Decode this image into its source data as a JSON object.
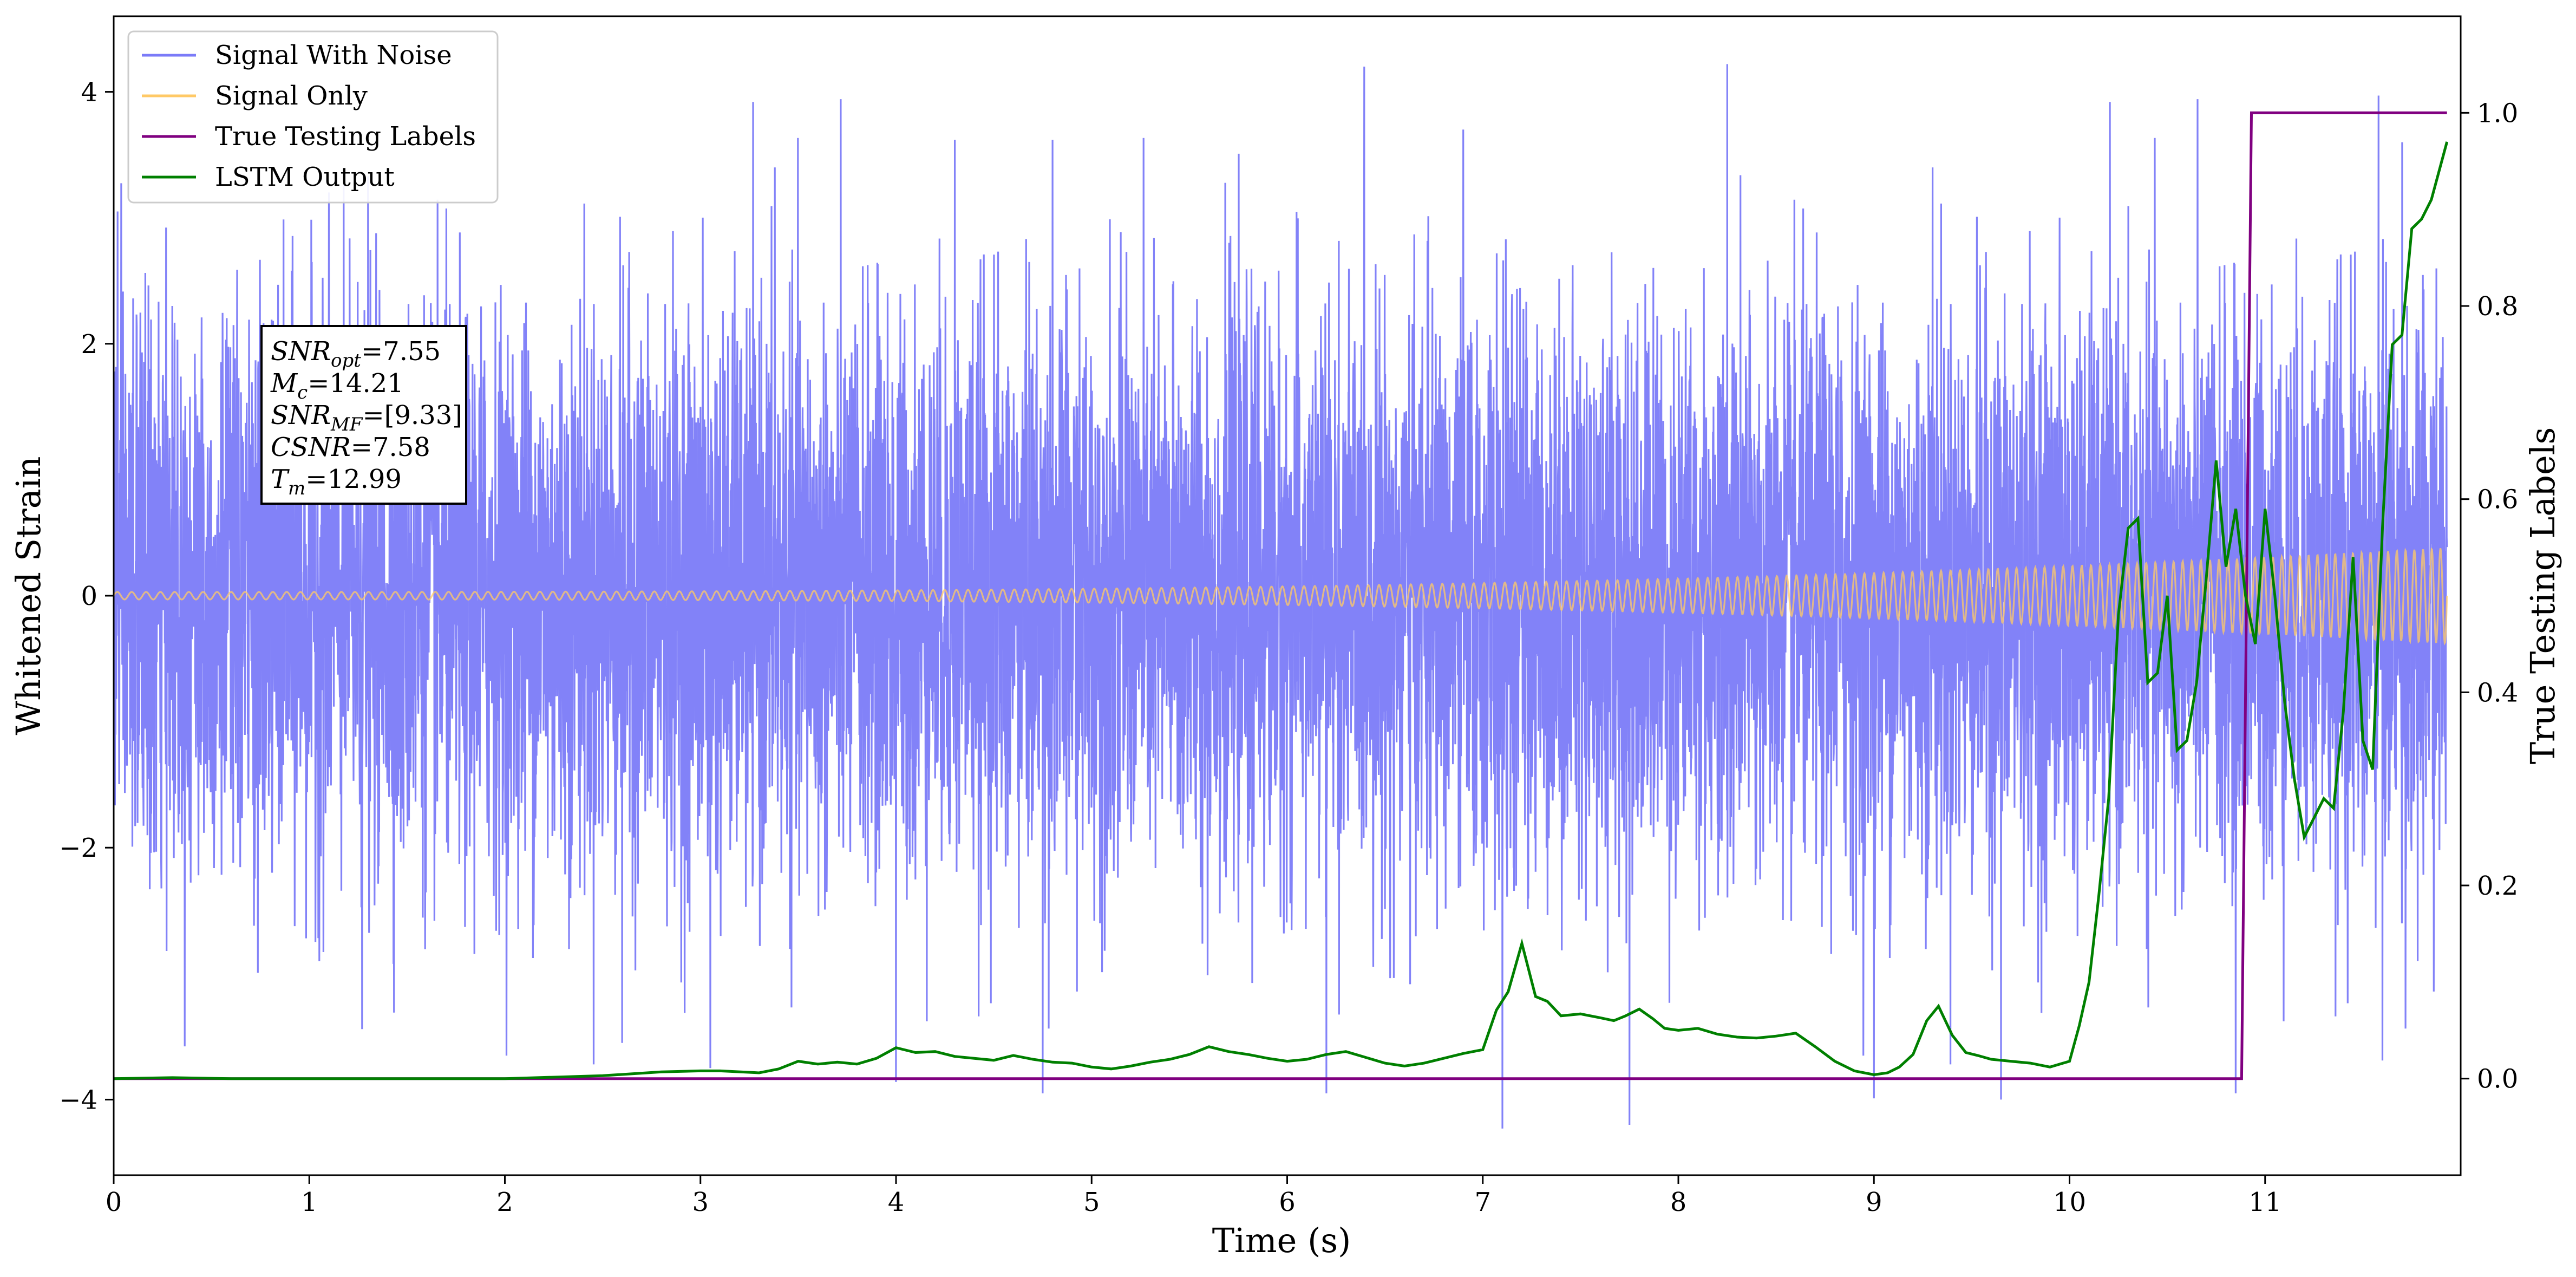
{
  "chart_data": {
    "type": "line",
    "xlabel": "Time (s)",
    "ylabel_left": "Whitened Strain",
    "ylabel_right": "True Testing Labels",
    "xlim": [
      0,
      12
    ],
    "ylim_left": [
      -4.6,
      4.6
    ],
    "ylim_right": [
      -0.1,
      1.1
    ],
    "x_ticks": [
      0,
      1,
      2,
      3,
      4,
      5,
      6,
      7,
      8,
      9,
      10,
      11
    ],
    "y_ticks_left": [
      -4,
      -2,
      0,
      2,
      4
    ],
    "y_ticks_left_labels": [
      "−4",
      "−2",
      "0",
      "2",
      "4"
    ],
    "y_ticks_right": [
      0.0,
      0.2,
      0.4,
      0.6,
      0.8,
      1.0
    ],
    "y_ticks_right_labels": [
      "0.0",
      "0.2",
      "0.4",
      "0.6",
      "0.8",
      "1.0"
    ],
    "legend_position": "top-left",
    "grid": false,
    "series": [
      {
        "name": "Signal With Noise",
        "axis": "left",
        "color": "#7b7bf8",
        "kind": "noise",
        "approx_std": 1.1,
        "approx_range": [
          -4.2,
          4.2
        ],
        "notable_peaks": [
          [
            0.02,
            3.05
          ],
          [
            0.1,
            2.36
          ],
          [
            0.3,
            2.3
          ],
          [
            1.3,
            3.33
          ],
          [
            2.6,
            3.7
          ],
          [
            3.38,
            3.4
          ],
          [
            4.3,
            3.62
          ],
          [
            4.8,
            3.62
          ],
          [
            6.9,
            3.7
          ],
          [
            8.25,
            4.22
          ],
          [
            9.3,
            3.4
          ],
          [
            11.58,
            3.97
          ],
          [
            11.7,
            3.6
          ]
        ],
        "notable_troughs": [
          [
            1.27,
            -3.44
          ],
          [
            2.6,
            -3.55
          ],
          [
            3.05,
            -3.75
          ],
          [
            4.0,
            -3.86
          ],
          [
            4.75,
            -3.95
          ],
          [
            6.2,
            -3.95
          ],
          [
            7.1,
            -4.23
          ],
          [
            7.75,
            -4.2
          ],
          [
            9.0,
            -3.99
          ],
          [
            9.65,
            -4.0
          ],
          [
            10.85,
            -3.95
          ],
          [
            11.6,
            -3.69
          ],
          [
            11.78,
            -2.9
          ]
        ]
      },
      {
        "name": "Signal Only",
        "axis": "left",
        "color": "#ffc966",
        "kind": "chirp",
        "amplitude_start": 0.03,
        "amplitude_end": 0.38,
        "cycles": 215
      },
      {
        "name": "True Testing Labels",
        "axis": "right",
        "color": "#800080",
        "x": [
          0,
          10.88,
          10.93,
          11.93
        ],
        "y": [
          0,
          0,
          1,
          1
        ]
      },
      {
        "name": "LSTM Output",
        "axis": "right",
        "color": "#008000",
        "x": [
          0,
          0.3,
          0.6,
          1.0,
          1.5,
          2.0,
          2.5,
          2.8,
          3.0,
          3.1,
          3.3,
          3.4,
          3.5,
          3.6,
          3.7,
          3.8,
          3.9,
          4.0,
          4.1,
          4.2,
          4.3,
          4.4,
          4.5,
          4.6,
          4.7,
          4.8,
          4.9,
          5.0,
          5.1,
          5.2,
          5.3,
          5.4,
          5.5,
          5.6,
          5.7,
          5.8,
          5.9,
          6.0,
          6.1,
          6.2,
          6.3,
          6.4,
          6.5,
          6.6,
          6.7,
          6.8,
          6.9,
          7.0,
          7.07,
          7.13,
          7.2,
          7.27,
          7.33,
          7.4,
          7.5,
          7.6,
          7.67,
          7.73,
          7.8,
          7.87,
          7.93,
          8.0,
          8.1,
          8.2,
          8.3,
          8.4,
          8.5,
          8.6,
          8.7,
          8.8,
          8.9,
          9.0,
          9.07,
          9.13,
          9.2,
          9.27,
          9.33,
          9.4,
          9.47,
          9.53,
          9.6,
          9.7,
          9.8,
          9.9,
          10.0,
          10.05,
          10.1,
          10.15,
          10.2,
          10.25,
          10.3,
          10.35,
          10.4,
          10.45,
          10.5,
          10.55,
          10.6,
          10.65,
          10.7,
          10.75,
          10.8,
          10.85,
          10.9,
          10.95,
          11.0,
          11.05,
          11.1,
          11.15,
          11.2,
          11.25,
          11.3,
          11.35,
          11.4,
          11.45,
          11.5,
          11.55,
          11.6,
          11.65,
          11.7,
          11.75,
          11.8,
          11.85,
          11.93
        ],
        "y": [
          0.0,
          0.001,
          0.0,
          0.0,
          0.0,
          0.0,
          0.003,
          0.007,
          0.008,
          0.008,
          0.006,
          0.01,
          0.018,
          0.015,
          0.017,
          0.015,
          0.021,
          0.032,
          0.027,
          0.028,
          0.023,
          0.021,
          0.019,
          0.024,
          0.02,
          0.017,
          0.016,
          0.012,
          0.01,
          0.013,
          0.017,
          0.02,
          0.025,
          0.033,
          0.028,
          0.025,
          0.021,
          0.018,
          0.02,
          0.025,
          0.028,
          0.022,
          0.016,
          0.013,
          0.016,
          0.021,
          0.026,
          0.03,
          0.071,
          0.09,
          0.14,
          0.085,
          0.08,
          0.065,
          0.067,
          0.063,
          0.06,
          0.065,
          0.072,
          0.062,
          0.052,
          0.05,
          0.052,
          0.046,
          0.043,
          0.042,
          0.044,
          0.047,
          0.033,
          0.018,
          0.008,
          0.004,
          0.006,
          0.012,
          0.025,
          0.06,
          0.075,
          0.045,
          0.027,
          0.024,
          0.02,
          0.018,
          0.016,
          0.012,
          0.018,
          0.055,
          0.1,
          0.19,
          0.29,
          0.48,
          0.57,
          0.58,
          0.41,
          0.42,
          0.5,
          0.34,
          0.35,
          0.41,
          0.52,
          0.64,
          0.53,
          0.59,
          0.5,
          0.45,
          0.59,
          0.5,
          0.39,
          0.31,
          0.25,
          0.27,
          0.29,
          0.28,
          0.38,
          0.54,
          0.35,
          0.32,
          0.57,
          0.76,
          0.77,
          0.88,
          0.89,
          0.91,
          0.97
        ]
      }
    ],
    "annotation_lines": [
      {
        "var": "SNR",
        "sub": "opt",
        "rest": "=7.55"
      },
      {
        "var": "M",
        "sub": "c",
        "rest": "=14.21"
      },
      {
        "var": "SNR",
        "sub": "MF",
        "rest": "=[9.33]"
      },
      {
        "var": "CSNR",
        "sub": "",
        "rest": "=7.58"
      },
      {
        "var": "T",
        "sub": "m",
        "rest": "=12.99"
      }
    ]
  }
}
